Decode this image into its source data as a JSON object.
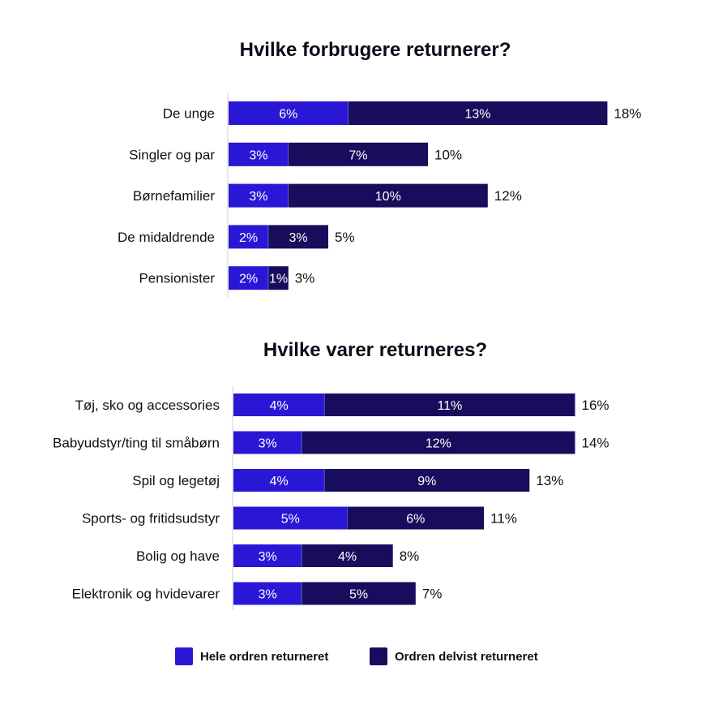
{
  "colors": {
    "whole": "#2a17d6",
    "partial": "#180d5c",
    "axis": "#cfcfcf",
    "text": "#111111"
  },
  "legend": {
    "whole_label": "Hele ordren returneret",
    "partial_label": "Ordren delvist returneret"
  },
  "chart_data": [
    {
      "type": "bar",
      "orientation": "horizontal",
      "stacked": true,
      "title": "Hvilke forbrugere returnerer?",
      "categories": [
        "De unge",
        "Singler og par",
        "Børnefamilier",
        "De midaldrende",
        "Pensionister"
      ],
      "series": [
        {
          "name": "Hele ordren returneret",
          "values": [
            6,
            3,
            3,
            2,
            2
          ],
          "labels": [
            "6%",
            "3%",
            "3%",
            "2%",
            "2%"
          ]
        },
        {
          "name": "Ordren delvist returneret",
          "values": [
            13,
            7,
            10,
            3,
            1
          ],
          "labels": [
            "13%",
            "7%",
            "10%",
            "3%",
            "1%"
          ]
        }
      ],
      "totals": [
        "18%",
        "10%",
        "12%",
        "5%",
        "3%"
      ],
      "total_values": [
        18,
        10,
        12,
        5,
        3
      ],
      "unit": "%"
    },
    {
      "type": "bar",
      "orientation": "horizontal",
      "stacked": true,
      "title": "Hvilke varer returneres?",
      "categories": [
        "Tøj, sko og accessories",
        "Babyudstyr/ting til småbørn",
        "Spil og legetøj",
        "Sports- og fritidsudstyr",
        "Bolig og have",
        "Elektronik og hvidevarer"
      ],
      "series": [
        {
          "name": "Hele ordren returneret",
          "values": [
            4,
            3,
            4,
            5,
            3,
            3
          ],
          "labels": [
            "4%",
            "3%",
            "4%",
            "5%",
            "3%",
            "3%"
          ]
        },
        {
          "name": "Ordren delvist returneret",
          "values": [
            11,
            12,
            9,
            6,
            4,
            5
          ],
          "labels": [
            "11%",
            "12%",
            "9%",
            "6%",
            "4%",
            "5%"
          ]
        }
      ],
      "totals": [
        "16%",
        "14%",
        "13%",
        "11%",
        "8%",
        "7%"
      ],
      "total_values": [
        16,
        14,
        13,
        11,
        8,
        7
      ],
      "unit": "%"
    }
  ]
}
